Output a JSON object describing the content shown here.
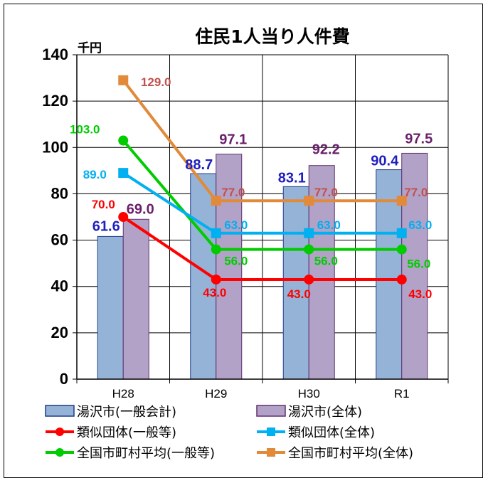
{
  "chart_data": {
    "type": "bar",
    "title": "住民1人当り人件費",
    "unit_label": "千円",
    "categories": [
      "H28",
      "H29",
      "H30",
      "R1"
    ],
    "ylim": [
      0,
      140
    ],
    "yticks": [
      "0",
      "20",
      "40",
      "60",
      "80",
      "100",
      "120",
      "140"
    ],
    "grid": true,
    "legend_position": "bottom",
    "bar_series": [
      {
        "name": "湯沢市(一般会計)",
        "values": [
          61.6,
          88.7,
          83.1,
          90.4
        ],
        "labels": [
          "61.6",
          "88.7",
          "83.1",
          "90.4"
        ],
        "fill": "#95b3d7",
        "stroke": "#1f3c88",
        "label_color": "#1f1fbf"
      },
      {
        "name": "湯沢市(全体)",
        "values": [
          69.0,
          97.1,
          92.2,
          97.5
        ],
        "labels": [
          "69.0",
          "97.1",
          "92.2",
          "97.5"
        ],
        "fill": "#b3a2c7",
        "stroke": "#60306f",
        "label_color": "#6a1f6a"
      }
    ],
    "line_series": [
      {
        "name": "類似団体(一般等)",
        "values": [
          70.0,
          43.0,
          43.0,
          43.0
        ],
        "labels": [
          "70.0",
          "43.0",
          "43.0",
          "43.0"
        ],
        "color": "#ff0000",
        "marker": "circle"
      },
      {
        "name": "類似団体(全体)",
        "values": [
          89.0,
          63.0,
          63.0,
          63.0
        ],
        "labels": [
          "89.0",
          "63.0",
          "63.0",
          "63.0"
        ],
        "color": "#00b0f0",
        "marker": "square"
      },
      {
        "name": "全国市町村平均(一般等)",
        "values": [
          103.0,
          56.0,
          56.0,
          56.0
        ],
        "labels": [
          "103.0",
          "56.0",
          "56.0",
          "56.0"
        ],
        "color": "#00cc00",
        "marker": "circle"
      },
      {
        "name": "全国市町村平均(全体)",
        "values": [
          129.0,
          77.0,
          77.0,
          77.0
        ],
        "labels": [
          "129.0",
          "77.0",
          "77.0",
          "77.0"
        ],
        "color": "#e08a3a",
        "marker": "square",
        "label_color": "#c0504d"
      }
    ]
  },
  "legend": [
    {
      "label": "湯沢市(一般会計)",
      "kind": "bar",
      "fill": "#95b3d7",
      "stroke": "#1f3c88"
    },
    {
      "label": "湯沢市(全体)",
      "kind": "bar",
      "fill": "#b3a2c7",
      "stroke": "#60306f"
    },
    {
      "label": "類似団体(一般等)",
      "kind": "line",
      "color": "#ff0000",
      "marker": "circle"
    },
    {
      "label": "類似団体(全体)",
      "kind": "line",
      "color": "#00b0f0",
      "marker": "square"
    },
    {
      "label": "全国市町村平均(一般等)",
      "kind": "line",
      "color": "#00cc00",
      "marker": "circle"
    },
    {
      "label": "全国市町村平均(全体)",
      "kind": "line",
      "color": "#e08a3a",
      "marker": "square"
    }
  ]
}
